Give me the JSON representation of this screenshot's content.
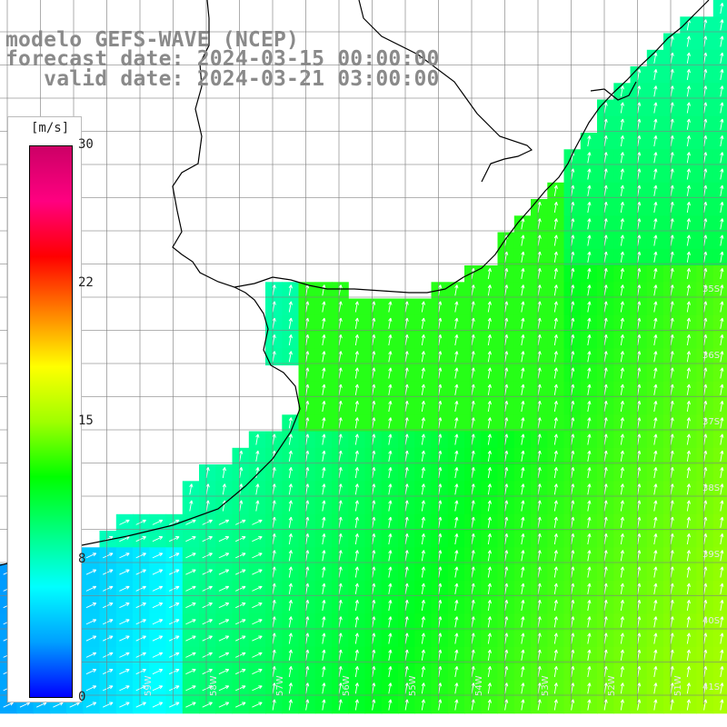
{
  "title": {
    "line1": "modelo GEFS-WAVE (NCEP)",
    "line2": "forecast date: 2024-03-15 00:00:00",
    "line3": "   valid date: 2024-03-21 03:00:00"
  },
  "colorbar": {
    "unit": "[m/s]",
    "ticks": [
      "30",
      "22",
      "15",
      "8",
      "0"
    ],
    "tick_values": [
      30,
      22,
      15,
      8,
      0
    ],
    "colors": [
      "#0000ff",
      "#00a0ff",
      "#00ffff",
      "#00ff80",
      "#00ff00",
      "#a0ff00",
      "#ffff00",
      "#ff8000",
      "#ff0000",
      "#ff0080",
      "#cc0066"
    ]
  },
  "axes": {
    "lat_labels": [
      "35S",
      "36S",
      "37S",
      "38S",
      "39S",
      "40S",
      "41S"
    ],
    "lon_labels": [
      "59W",
      "58W",
      "57W",
      "56W",
      "55W",
      "54W",
      "53W",
      "52W",
      "51W"
    ]
  },
  "map": {
    "land_color": "#ffffff",
    "grid_color": "#808080",
    "coast_color": "#000000",
    "arrow_color": "#ffffff",
    "field": "wind speed with direction arrows"
  }
}
